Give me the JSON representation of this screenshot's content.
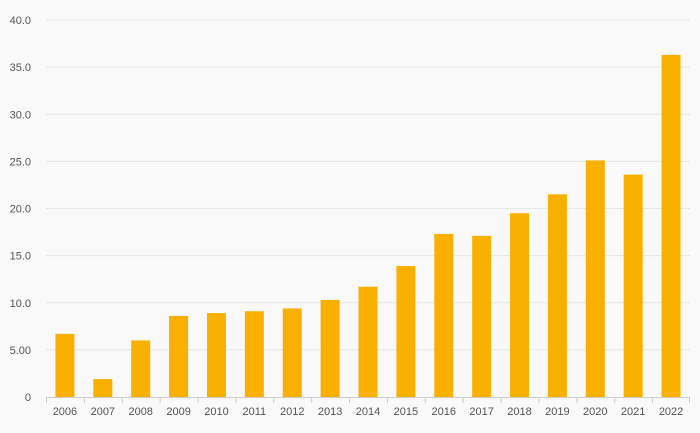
{
  "chart_data": {
    "type": "bar",
    "title": "",
    "xlabel": "",
    "ylabel": "",
    "categories": [
      "2006",
      "2007",
      "2008",
      "2009",
      "2010",
      "2011",
      "2012",
      "2013",
      "2014",
      "2015",
      "2016",
      "2017",
      "2018",
      "2019",
      "2020",
      "2021",
      "2022"
    ],
    "values": [
      6.7,
      1.9,
      6.0,
      8.6,
      8.9,
      9.1,
      9.4,
      10.3,
      11.7,
      13.9,
      17.3,
      17.1,
      19.5,
      21.5,
      25.1,
      23.6,
      36.3
    ],
    "ylim": [
      0,
      40
    ],
    "yticks": [
      0,
      5,
      10,
      15,
      20,
      25,
      30,
      35,
      40
    ],
    "ytick_labels": [
      "0",
      "5.00",
      "10.0",
      "15.0",
      "20.0",
      "25.0",
      "30.0",
      "35.0",
      "40.0"
    ],
    "grid": true,
    "bar_color": "#f9b000",
    "background_color": "#f9f9f9",
    "grid_color": "#e6e6e6"
  }
}
